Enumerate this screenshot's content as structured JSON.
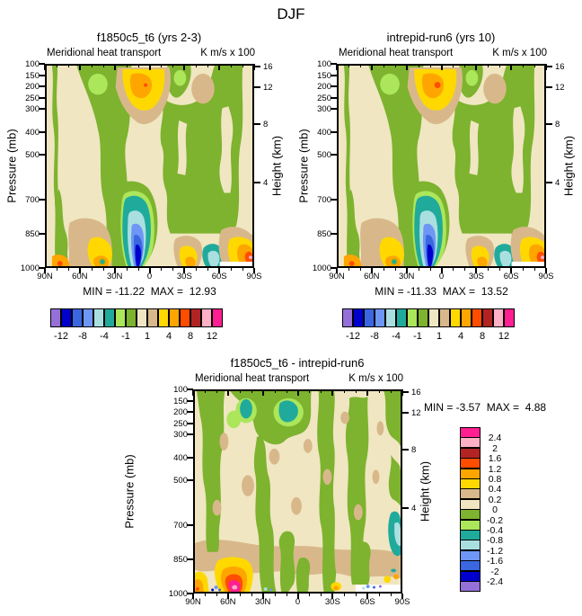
{
  "title": "DJF",
  "axes": {
    "pressure_label": "Pressure (mb)",
    "height_label": "Height (km)",
    "pressure_ticks": [
      "100",
      "150",
      "200",
      "250",
      "300",
      "400",
      "500",
      "700",
      "850",
      "1000"
    ],
    "height_ticks": [
      "16",
      "12",
      "8",
      "4"
    ],
    "lat_ticks": [
      "90N",
      "60N",
      "30N",
      "0",
      "30S",
      "60S",
      "90S"
    ]
  },
  "panels": [
    {
      "title": "f1850c5_t6 (yrs 2-3)",
      "subtitle_left": "Meridional heat transport",
      "subtitle_right": "K m/s x 100",
      "stats": "MIN = -11.22  MAX =  12.93"
    },
    {
      "title": "intrepid-run6 (yrs 10)",
      "subtitle_left": "Meridional heat transport",
      "subtitle_right": "K m/s x 100",
      "stats": "MIN = -11.33  MAX =  13.52"
    },
    {
      "title": "f1850c5_t6 - intrepid-run6",
      "subtitle_left": "Meridional heat transport",
      "subtitle_right": "K m/s x 100",
      "stats": "MIN = -3.57  MAX =  4.88"
    }
  ],
  "colorbar": {
    "labels": [
      "-12",
      "-8",
      "-4",
      "-1",
      "1",
      "4",
      "8",
      "12"
    ]
  },
  "legend": {
    "labels": [
      "2.4",
      "2",
      "1.6",
      "1.2",
      "0.8",
      "0.4",
      "0.2",
      "0",
      "-0.2",
      "-0.4",
      "-0.8",
      "-1.2",
      "-1.6",
      "-2",
      "-2.4"
    ]
  },
  "palette": [
    "#9670d9",
    "#0000cd",
    "#3a66e0",
    "#6e96f5",
    "#aadfdf",
    "#20aa9c",
    "#abe65b",
    "#7db32e",
    "#f0e6c2",
    "#d8b88a",
    "#ffd800",
    "#ffa500",
    "#ff4d00",
    "#b22422",
    "#ffb0c5",
    "#ff1f92"
  ],
  "chart_data": {
    "type": "heatmap",
    "figure_kind": "latitude-pressure contour cross-sections (NCL-style), 3 panels",
    "season": "DJF",
    "field": "Meridional heat transport",
    "units": "K m/s x 100",
    "x_axis": {
      "ticks": [
        "90N",
        "60N",
        "30N",
        "0",
        "30S",
        "60S",
        "90S"
      ],
      "minor_tick_interval_deg": 10,
      "direction": "90N at left to 90S at right"
    },
    "y_axis_left": {
      "label": "Pressure (mb)",
      "ticks": [
        100,
        150,
        200,
        250,
        300,
        400,
        500,
        700,
        850,
        1000
      ],
      "scale": "linear in pressure, 100 mb at top"
    },
    "y_axis_right": {
      "label": "Height (km)",
      "ticks": [
        16,
        12,
        8,
        4
      ]
    },
    "panels": [
      {
        "name": "f1850c5_t6 (yrs 2-3)",
        "min": -11.22,
        "max": 12.93,
        "contour_levels": [
          -12,
          -10,
          -8,
          -6,
          -4,
          -2,
          -1,
          0,
          1,
          2,
          4,
          6,
          8,
          10,
          12
        ],
        "labeled_levels": [
          -12,
          -8,
          -4,
          -1,
          1,
          4,
          8,
          12
        ],
        "features": [
          "orange/yellow maximum (~13) near 5N at 150-250 mb ringed by tan",
          "deep blue minimum (~-11) near 10N at 850-1000 mb nested in teal/light blue",
          "green (slightly negative) bands near 40N aloft and over most of the southern mid-troposphere",
          "yellow/orange positive cells near 45N, 20S and 80-90S at 850-1000 mb",
          "teal negative cell near 50S at 950 mb; white (below-ground) strip at bottom right"
        ]
      },
      {
        "name": "intrepid-run6 (yrs 10)",
        "min": -11.33,
        "max": 13.52,
        "contour_levels": [
          -12,
          -10,
          -8,
          -6,
          -4,
          -2,
          -1,
          0,
          1,
          2,
          4,
          6,
          8,
          10,
          12
        ],
        "labeled_levels": [
          -12,
          -8,
          -4,
          -1,
          1,
          4,
          8,
          12
        ],
        "features": [
          "same pattern as left panel; red core (>8) inside the tropical upper-level orange maximum",
          "blue minimum near 10N at 900-1000 mb; warm cells near 45N, 20S and 85S at the surface"
        ]
      },
      {
        "name": "f1850c5_t6 - intrepid-run6",
        "min": -3.57,
        "max": 4.88,
        "contour_levels": [
          -2.4,
          -2,
          -1.6,
          -1.2,
          -0.8,
          -0.4,
          -0.2,
          0,
          0.2,
          0.4,
          0.8,
          1.2,
          1.6,
          2,
          2.4
        ],
        "labeled_levels": [
          2.4,
          2,
          1.6,
          1.2,
          0.8,
          0.4,
          0.2,
          0,
          -0.2,
          -0.4,
          -0.8,
          -1.2,
          -1.6,
          -2,
          -2.4
        ],
        "features": [
          "mostly near-zero: cream (0 to 0.2) with wiggly green (-0.2 to 0) bands",
          "teal negative cells (-0.8 to -0.4) near 45N and 15N at 150-220 mb",
          "strong positive cell (max 4.88: yellow-orange-red-magenta) near 55-65N at 950-1000 mb",
          "blue/purple specks and teal streaks near 60-90S at low levels; white below-ground strip bottom right"
        ]
      }
    ],
    "colorbar_top_panels": {
      "orientation": "horizontal",
      "labels": [
        -12,
        -8,
        -4,
        -1,
        1,
        4,
        8,
        12
      ],
      "n_colors": 16
    },
    "legend_bottom_panel": {
      "orientation": "vertical",
      "labels_top_to_bottom": [
        2.4,
        2,
        1.6,
        1.2,
        0.8,
        0.4,
        0.2,
        0,
        -0.2,
        -0.4,
        -0.8,
        -1.2,
        -1.6,
        -2,
        -2.4
      ],
      "n_colors": 16
    },
    "palette_neg_to_pos": [
      "#9670d9",
      "#0000cd",
      "#3a66e0",
      "#6e96f5",
      "#aadfdf",
      "#20aa9c",
      "#abe65b",
      "#7db32e",
      "#f0e6c2",
      "#d8b88a",
      "#ffd800",
      "#ffa500",
      "#ff4d00",
      "#b22422",
      "#ffb0c5",
      "#ff1f92"
    ]
  }
}
